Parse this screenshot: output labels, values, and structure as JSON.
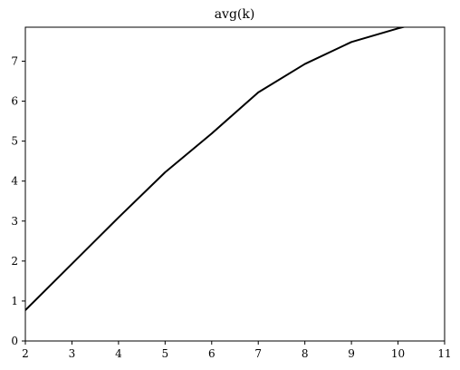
{
  "chart_data": {
    "type": "line",
    "title": "avg(k)",
    "xlabel": "",
    "ylabel": "",
    "x": [
      2,
      3,
      4,
      5,
      6,
      7,
      8,
      9,
      10,
      11
    ],
    "series": [
      {
        "name": "avg(k)",
        "color": "#000000",
        "values": [
          0.77,
          1.93,
          3.09,
          4.22,
          5.19,
          6.22,
          6.93,
          7.48,
          7.82,
          8.12
        ]
      }
    ],
    "xlim": [
      2,
      11
    ],
    "ylim": [
      0,
      7.85
    ],
    "xticks": [
      2,
      3,
      4,
      5,
      6,
      7,
      8,
      9,
      10,
      11
    ],
    "yticks": [
      0,
      1,
      2,
      3,
      4,
      5,
      6,
      7
    ],
    "grid": false,
    "legend": "none"
  }
}
